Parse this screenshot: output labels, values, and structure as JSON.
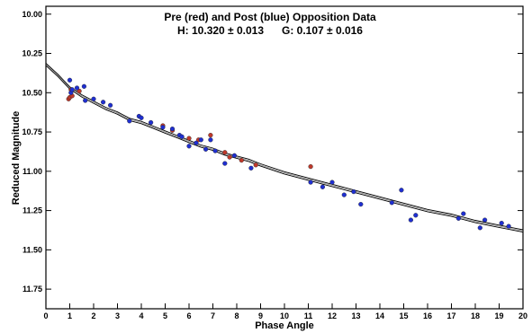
{
  "chart_data": {
    "type": "scatter",
    "title": "Pre (red) and Post (blue) Opposition Data",
    "subtitle": "H: 10.320 ± 0.013      G: 0.107 ± 0.016",
    "xlabel": "Phase Angle",
    "ylabel": "Reduced Magnitude",
    "xlim": [
      0,
      20
    ],
    "ylim": [
      11.875,
      9.95
    ],
    "y_inverted": true,
    "x_ticks": [
      0,
      1,
      2,
      3,
      4,
      5,
      6,
      7,
      8,
      9,
      10,
      11,
      12,
      13,
      14,
      15,
      16,
      17,
      18,
      19,
      20
    ],
    "y_ticks": [
      "10.00",
      "10.25",
      "10.50",
      "10.75",
      "11.00",
      "11.25",
      "11.50",
      "11.75"
    ],
    "grid": false,
    "colors": {
      "pre": "#c0392b",
      "post": "#1f2fd1",
      "fit": "#000000"
    },
    "fit_curve": {
      "x": [
        0,
        0.5,
        1,
        1.5,
        2,
        2.5,
        3,
        3.5,
        4,
        4.5,
        5,
        5.5,
        6,
        6.5,
        7,
        7.5,
        8,
        8.5,
        9,
        10,
        11,
        12,
        13,
        14,
        15,
        16,
        17,
        18,
        19,
        20
      ],
      "y": [
        10.32,
        10.39,
        10.47,
        10.52,
        10.56,
        10.6,
        10.63,
        10.67,
        10.69,
        10.72,
        10.75,
        10.78,
        10.81,
        10.84,
        10.86,
        10.89,
        10.91,
        10.93,
        10.96,
        11.01,
        11.05,
        11.09,
        11.13,
        11.17,
        11.21,
        11.25,
        11.28,
        11.32,
        11.35,
        11.38
      ]
    },
    "series": [
      {
        "name": "Pre",
        "x": [
          0.95,
          1.0,
          1.05,
          1.1,
          1.4,
          4.9,
          5.3,
          6.0,
          6.4,
          6.9,
          7.5,
          7.7,
          8.2,
          8.8,
          11.1
        ],
        "y": [
          10.54,
          10.53,
          10.48,
          10.52,
          10.49,
          10.71,
          10.74,
          10.79,
          10.8,
          10.77,
          10.88,
          10.91,
          10.93,
          10.96,
          10.97
        ]
      },
      {
        "name": "Post",
        "x": [
          1.0,
          1.05,
          1.1,
          1.3,
          1.6,
          1.65,
          2.0,
          2.4,
          2.7,
          3.5,
          3.9,
          4.0,
          4.4,
          4.9,
          5.3,
          5.6,
          5.7,
          6.0,
          6.3,
          6.5,
          6.7,
          6.9,
          7.1,
          7.5,
          7.9,
          8.6,
          11.1,
          11.6,
          12.0,
          12.5,
          12.9,
          13.2,
          14.5,
          14.9,
          15.3,
          15.5,
          17.3,
          17.5,
          18.2,
          18.4,
          19.1,
          19.4
        ],
        "y": [
          10.42,
          10.5,
          10.48,
          10.47,
          10.46,
          10.55,
          10.54,
          10.56,
          10.58,
          10.68,
          10.65,
          10.66,
          10.69,
          10.72,
          10.73,
          10.77,
          10.78,
          10.84,
          10.82,
          10.8,
          10.86,
          10.8,
          10.87,
          10.95,
          10.9,
          10.98,
          11.07,
          11.1,
          11.07,
          11.15,
          11.13,
          11.21,
          11.2,
          11.12,
          11.31,
          11.28,
          11.3,
          11.27,
          11.36,
          11.31,
          11.33,
          11.35
        ]
      }
    ]
  }
}
